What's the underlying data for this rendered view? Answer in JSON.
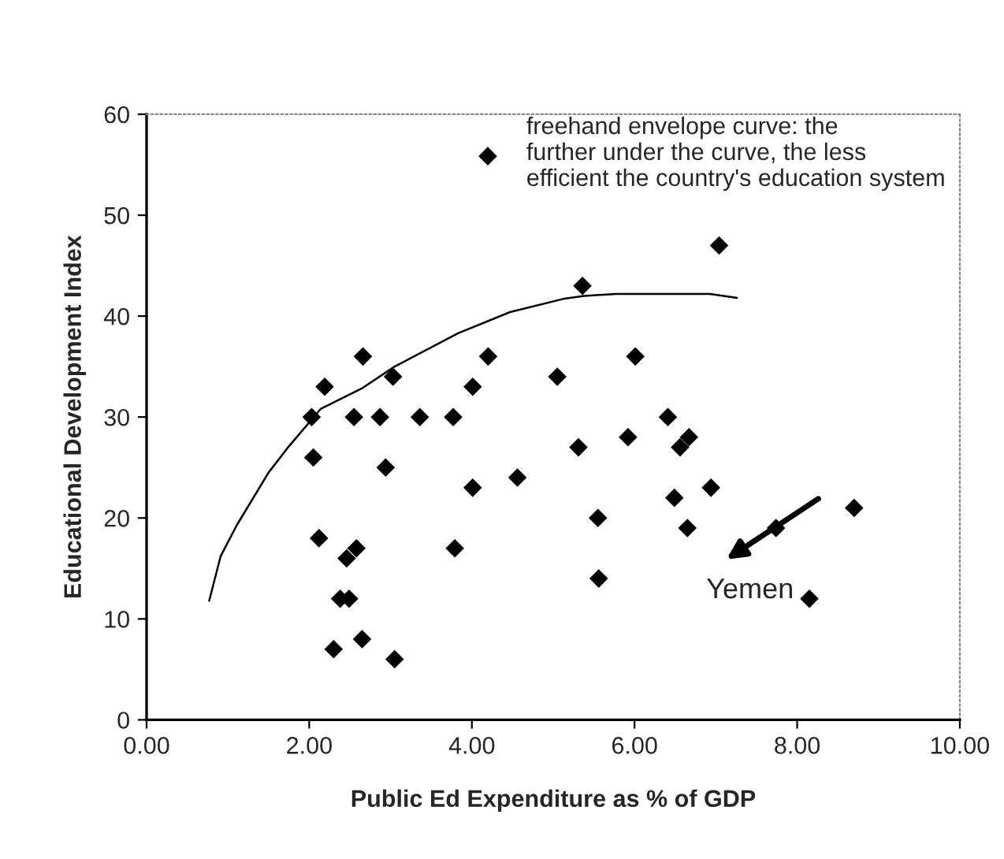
{
  "chart_data": {
    "type": "scatter",
    "xlabel": "Public Ed Expenditure as % of GDP",
    "ylabel": "Educational Development Index",
    "xlim": [
      0,
      10
    ],
    "xticks": [
      {
        "value": 0,
        "label": "0.00"
      },
      {
        "value": 2,
        "label": "2.00"
      },
      {
        "value": 4,
        "label": "4.00"
      },
      {
        "value": 6,
        "label": "6.00"
      },
      {
        "value": 8,
        "label": "8.00"
      },
      {
        "value": 10,
        "label": "10.00"
      }
    ],
    "ylim": [
      0,
      60
    ],
    "yticks": [
      0,
      10,
      20,
      30,
      40,
      50,
      60
    ],
    "grid": false,
    "legend": "top right",
    "marker": "diamond",
    "annotations": [
      "Yemen"
    ],
    "series": [
      {
        "name": "freehand envelope curve: the\nfurther under the curve, the less\nefficient the country's education system",
        "color": "#000000",
        "x": [
          2.03,
          2.19,
          2.66,
          3.03,
          2.05,
          2.55,
          2.87,
          3.36,
          3.77,
          4.01,
          4.2,
          2.94,
          4.01,
          4.56,
          5.05,
          5.31,
          5.36,
          2.12,
          2.58,
          2.46,
          3.79,
          2.38,
          2.49,
          2.3,
          2.65,
          3.05,
          7.04,
          6.01,
          6.41,
          5.92,
          6.67,
          6.56,
          6.94,
          6.49,
          5.55,
          6.65,
          7.74,
          8.7,
          5.56,
          8.15
        ],
        "values": [
          30,
          33,
          36,
          34,
          26,
          30,
          30,
          30,
          30,
          33,
          36,
          25,
          23,
          24,
          34,
          27,
          43,
          18,
          17,
          16,
          17,
          12,
          12,
          7,
          8,
          6,
          47,
          36,
          30,
          28,
          28,
          27,
          23,
          22,
          20,
          19,
          19,
          21,
          14,
          12
        ]
      },
      {
        "type": "line",
        "color": "#000000",
        "marker": "none",
        "line_style": "solid",
        "x": [
          0.77,
          0.91,
          1.11,
          1.5,
          1.75,
          2.14,
          2.66,
          3.05,
          3.83,
          4.47,
          5.12,
          5.38,
          5.77,
          6.93,
          7.26
        ],
        "values": [
          11.8,
          16.2,
          19.3,
          24.5,
          27.1,
          30.8,
          32.9,
          35,
          38.3,
          40.4,
          41.7,
          42,
          42.2,
          42.2,
          41.8
        ]
      }
    ]
  }
}
